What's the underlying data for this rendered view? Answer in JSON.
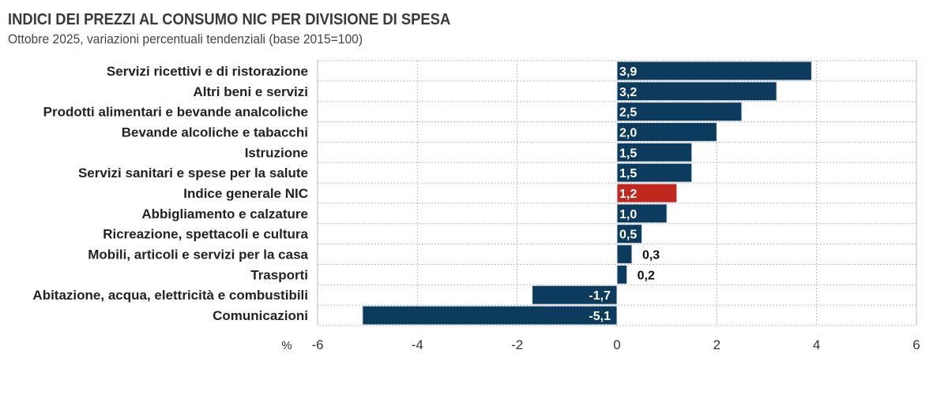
{
  "chart_data": {
    "type": "bar",
    "orientation": "horizontal",
    "title": "INDICI DEI PREZZI AL CONSUMO NIC PER DIVISIONE DI SPESA",
    "subtitle": "Ottobre 2025, variazioni percentuali tendenziali (base 2015=100)",
    "xlabel": "%",
    "xlim": [
      -6,
      6
    ],
    "xticks": [
      "-6",
      "-4",
      "-2",
      "0",
      "2",
      "4",
      "6"
    ],
    "grid": true,
    "categories": [
      "Servizi ricettivi e di ristorazione",
      "Altri beni e servizi",
      "Prodotti alimentari e bevande analcoliche",
      "Bevande alcoliche e tabacchi",
      "Istruzione",
      "Servizi sanitari e spese per la salute",
      "Indice generale NIC",
      "Abbigliamento e calzature",
      "Ricreazione, spettacoli e cultura",
      "Mobili, articoli e servizi per la casa",
      "Trasporti",
      "Abitazione, acqua, elettricità e combustibili",
      "Comunicazioni"
    ],
    "values": [
      3.9,
      3.2,
      2.5,
      2.0,
      1.5,
      1.5,
      1.2,
      1.0,
      0.5,
      0.3,
      0.2,
      -1.7,
      -5.1
    ],
    "data_labels": [
      "3,9",
      "3,2",
      "2,5",
      "2,0",
      "1,5",
      "1,5",
      "1,2",
      "1,0",
      "0,5",
      "0,3",
      "0,2",
      "-1,7",
      "-5,1"
    ],
    "colors": {
      "default": "#0d3b5e",
      "highlight": "#c0281e",
      "highlight_category": "Indice generale NIC"
    }
  }
}
